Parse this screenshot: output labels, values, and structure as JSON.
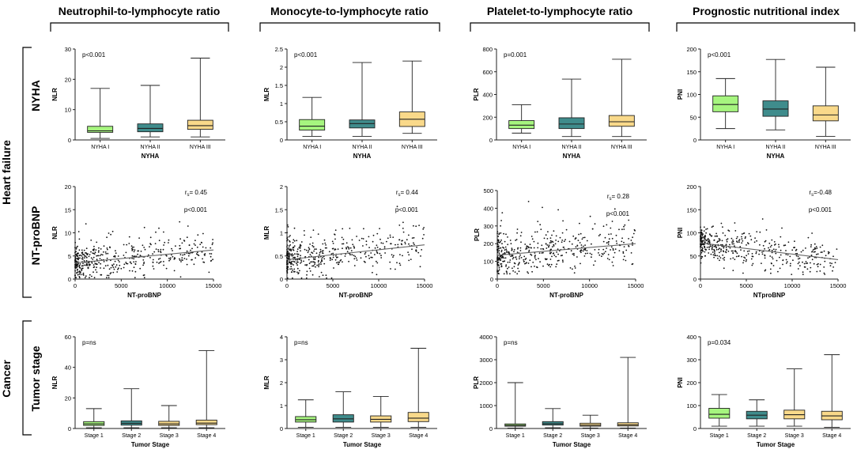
{
  "columns": [
    {
      "title": "Neutrophil-to-lymphocyte ratio"
    },
    {
      "title": "Monocyte-to-lymphocyte ratio"
    },
    {
      "title": "Platelet-to-lymphocyte ratio"
    },
    {
      "title": "Prognostic nutritional index"
    }
  ],
  "groups": [
    {
      "label": "Heart failure",
      "rows": [
        "NYHA",
        "NT-proBNP"
      ]
    },
    {
      "label": "Cancer",
      "rows": [
        "Tumor stage"
      ]
    }
  ],
  "colors": {
    "green": "#a6f57f",
    "teal": "#3f8c8c",
    "yellow": "#f9d98a",
    "axis": "#222222",
    "dot": "#111111",
    "trend": "#666666"
  },
  "chart_data": [
    {
      "id": "nyha_nlr",
      "type": "box",
      "title": "",
      "xlabel": "NYHA",
      "ylabel": "NLR",
      "ylim": [
        0,
        30
      ],
      "yticks": [
        0,
        10,
        20,
        30
      ],
      "categories": [
        "NYHA I",
        "NYHA II",
        "NYHA III"
      ],
      "annotation": "p<0.001",
      "boxes": [
        {
          "min": 0.5,
          "q1": 2.5,
          "median": 3.0,
          "q3": 4.5,
          "max": 17,
          "color": "green"
        },
        {
          "min": 1.0,
          "q1": 2.7,
          "median": 3.8,
          "q3": 5.3,
          "max": 18,
          "color": "teal"
        },
        {
          "min": 1.0,
          "q1": 3.5,
          "median": 4.7,
          "q3": 6.5,
          "max": 27,
          "color": "yellow"
        }
      ]
    },
    {
      "id": "nyha_mlr",
      "type": "box",
      "title": "",
      "xlabel": "NYHA",
      "ylabel": "MLR",
      "ylim": [
        0,
        2.5
      ],
      "yticks": [
        0,
        0.5,
        1.0,
        1.5,
        2.0,
        2.5
      ],
      "categories": [
        "NYHA I",
        "NYHA II",
        "NYHA III"
      ],
      "annotation": "p<0.001",
      "boxes": [
        {
          "min": 0.1,
          "q1": 0.27,
          "median": 0.38,
          "q3": 0.56,
          "max": 1.17,
          "color": "green"
        },
        {
          "min": 0.1,
          "q1": 0.33,
          "median": 0.45,
          "q3": 0.55,
          "max": 2.13,
          "color": "teal"
        },
        {
          "min": 0.18,
          "q1": 0.37,
          "median": 0.57,
          "q3": 0.77,
          "max": 2.17,
          "color": "yellow"
        }
      ]
    },
    {
      "id": "nyha_plr",
      "type": "box",
      "title": "",
      "xlabel": "NYHA",
      "ylabel": "PLR",
      "ylim": [
        0,
        800
      ],
      "yticks": [
        0,
        200,
        400,
        600,
        800
      ],
      "categories": [
        "NYHA I",
        "NYHA II",
        "NYHA III"
      ],
      "annotation": "p=0.001",
      "boxes": [
        {
          "min": 60,
          "q1": 100,
          "median": 130,
          "q3": 170,
          "max": 310,
          "color": "green"
        },
        {
          "min": 30,
          "q1": 100,
          "median": 140,
          "q3": 195,
          "max": 535,
          "color": "teal"
        },
        {
          "min": 30,
          "q1": 120,
          "median": 160,
          "q3": 215,
          "max": 710,
          "color": "yellow"
        }
      ]
    },
    {
      "id": "nyha_pni",
      "type": "box",
      "title": "",
      "xlabel": "NYHA",
      "ylabel": "PNI",
      "ylim": [
        0,
        200
      ],
      "yticks": [
        0,
        50,
        100,
        150,
        200
      ],
      "categories": [
        "NYHA I",
        "NYHA II",
        "NYHA III"
      ],
      "annotation": "p<0.001",
      "boxes": [
        {
          "min": 25,
          "q1": 62,
          "median": 78,
          "q3": 97,
          "max": 135,
          "color": "green"
        },
        {
          "min": 22,
          "q1": 52,
          "median": 68,
          "q3": 86,
          "max": 177,
          "color": "teal"
        },
        {
          "min": 8,
          "q1": 42,
          "median": 55,
          "q3": 75,
          "max": 160,
          "color": "yellow"
        }
      ]
    },
    {
      "id": "bnp_nlr",
      "type": "scatter",
      "title": "",
      "xlabel": "NT-proBNP",
      "ylabel": "NLR",
      "xlim": [
        0,
        15000
      ],
      "xticks": [
        0,
        5000,
        10000,
        15000
      ],
      "ylim": [
        0,
        20
      ],
      "yticks": [
        0,
        5,
        10,
        15,
        20
      ],
      "rs_label": "r",
      "rs_sub": "s",
      "rs_value": "= 0.45",
      "annotation": "p<0.001",
      "trend": [
        [
          0,
          3.5
        ],
        [
          15000,
          6.3
        ]
      ],
      "n": 450,
      "seed": 11,
      "noise": 1.8,
      "ymin": 0.3
    },
    {
      "id": "bnp_mlr",
      "type": "scatter",
      "title": "",
      "xlabel": "NT-proBNP",
      "ylabel": "MLR",
      "xlim": [
        0,
        15000
      ],
      "xticks": [
        0,
        5000,
        10000,
        15000
      ],
      "ylim": [
        0,
        2.0
      ],
      "yticks": [
        0,
        0.5,
        1.0,
        1.5,
        2.0
      ],
      "rs_label": "r",
      "rs_sub": "s",
      "rs_value": "= 0.44",
      "annotation": "p<0.001",
      "trend": [
        [
          0,
          0.42
        ],
        [
          15000,
          0.74
        ]
      ],
      "n": 450,
      "seed": 23,
      "noise": 0.2,
      "ymin": 0.02
    },
    {
      "id": "bnp_plr",
      "type": "scatter",
      "title": "",
      "xlabel": "NT-proBNP",
      "ylabel": "PLR",
      "xlim": [
        0,
        15000
      ],
      "xticks": [
        0,
        5000,
        10000,
        15000
      ],
      "ylim": [
        0,
        500
      ],
      "yticks": [
        0,
        100,
        200,
        300,
        400,
        500
      ],
      "rs_label": "r",
      "rs_sub": "s",
      "rs_value": "= 0.28",
      "annotation": "p<0.001",
      "trend": [
        [
          0,
          135
        ],
        [
          15000,
          200
        ]
      ],
      "n": 450,
      "seed": 37,
      "noise": 55,
      "ymin": 30
    },
    {
      "id": "bnp_pni",
      "type": "scatter",
      "title": "",
      "xlabel": "NTproBNP",
      "ylabel": "PNI",
      "xlim": [
        0,
        15000
      ],
      "xticks": [
        0,
        5000,
        10000,
        15000
      ],
      "ylim": [
        0,
        200
      ],
      "yticks": [
        0,
        50,
        100,
        150,
        200
      ],
      "rs_label": "r",
      "rs_sub": "s",
      "rs_value": "=-0.48",
      "annotation": "p<0.001",
      "trend": [
        [
          0,
          78
        ],
        [
          15000,
          42
        ]
      ],
      "n": 450,
      "seed": 51,
      "noise": 18,
      "ymin": 10
    },
    {
      "id": "tumor_nlr",
      "type": "box",
      "title": "",
      "xlabel": "Tumor Stage",
      "ylabel": "NLR",
      "ylim": [
        0,
        60
      ],
      "yticks": [
        0,
        20,
        40,
        60
      ],
      "categories": [
        "Stage 1",
        "Stage 2",
        "Stage 3",
        "Stage 4"
      ],
      "annotation": "p=ns",
      "boxes": [
        {
          "min": 0.5,
          "q1": 2.0,
          "median": 3.0,
          "q3": 4.5,
          "max": 13,
          "color": "green"
        },
        {
          "min": 0.5,
          "q1": 2.2,
          "median": 3.4,
          "q3": 5.0,
          "max": 26,
          "color": "teal"
        },
        {
          "min": 0.5,
          "q1": 2.0,
          "median": 3.0,
          "q3": 4.7,
          "max": 15,
          "color": "yellow"
        },
        {
          "min": 0.5,
          "q1": 2.5,
          "median": 3.5,
          "q3": 5.5,
          "max": 51,
          "color": "yellow"
        }
      ]
    },
    {
      "id": "tumor_mlr",
      "type": "box",
      "title": "",
      "xlabel": "Tumor Stage",
      "ylabel": "MLR",
      "ylim": [
        0,
        4
      ],
      "yticks": [
        0,
        1,
        2,
        3,
        4
      ],
      "categories": [
        "Stage 1",
        "Stage 2",
        "Stage 3",
        "Stage 4"
      ],
      "annotation": "p=ns",
      "boxes": [
        {
          "min": 0.05,
          "q1": 0.28,
          "median": 0.38,
          "q3": 0.52,
          "max": 1.25,
          "color": "green"
        },
        {
          "min": 0.05,
          "q1": 0.28,
          "median": 0.42,
          "q3": 0.6,
          "max": 1.6,
          "color": "teal"
        },
        {
          "min": 0.05,
          "q1": 0.28,
          "median": 0.4,
          "q3": 0.55,
          "max": 1.4,
          "color": "yellow"
        },
        {
          "min": 0.05,
          "q1": 0.3,
          "median": 0.45,
          "q3": 0.7,
          "max": 3.5,
          "color": "yellow"
        }
      ]
    },
    {
      "id": "tumor_plr",
      "type": "box",
      "title": "",
      "xlabel": "Tumor Stage",
      "ylabel": "PLR",
      "ylim": [
        0,
        4000
      ],
      "yticks": [
        0,
        1000,
        2000,
        3000,
        4000
      ],
      "categories": [
        "Stage 1",
        "Stage 2",
        "Stage 3",
        "Stage 4"
      ],
      "annotation": "p=ns",
      "boxes": [
        {
          "min": 20,
          "q1": 100,
          "median": 140,
          "q3": 200,
          "max": 2000,
          "color": "green"
        },
        {
          "min": 30,
          "q1": 150,
          "median": 210,
          "q3": 300,
          "max": 870,
          "color": "teal"
        },
        {
          "min": 20,
          "q1": 100,
          "median": 150,
          "q3": 230,
          "max": 580,
          "color": "yellow"
        },
        {
          "min": 20,
          "q1": 110,
          "median": 160,
          "q3": 250,
          "max": 3100,
          "color": "yellow"
        }
      ]
    },
    {
      "id": "tumor_pni",
      "type": "box",
      "title": "",
      "xlabel": "Tumor Stage",
      "ylabel": "PNI",
      "ylim": [
        0,
        400
      ],
      "yticks": [
        0,
        100,
        200,
        300,
        400
      ],
      "categories": [
        "Stage 1",
        "Stage 2",
        "Stage 3",
        "Stage 4"
      ],
      "annotation": "p=0.034",
      "boxes": [
        {
          "min": 10,
          "q1": 45,
          "median": 62,
          "q3": 88,
          "max": 148,
          "color": "green"
        },
        {
          "min": 10,
          "q1": 42,
          "median": 58,
          "q3": 75,
          "max": 125,
          "color": "teal"
        },
        {
          "min": 10,
          "q1": 42,
          "median": 60,
          "q3": 80,
          "max": 260,
          "color": "yellow"
        },
        {
          "min": 5,
          "q1": 38,
          "median": 55,
          "q3": 75,
          "max": 322,
          "color": "yellow"
        }
      ]
    }
  ]
}
